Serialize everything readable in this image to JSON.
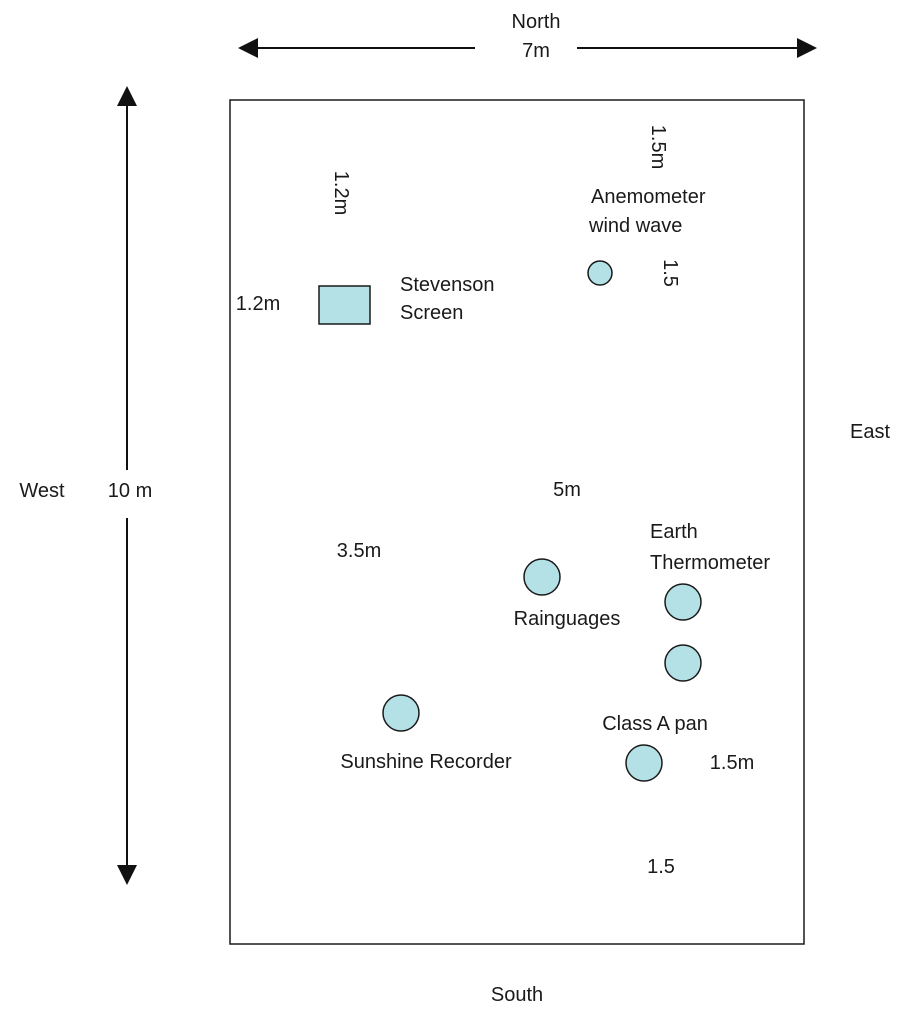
{
  "directions": {
    "north": "North",
    "south": "South",
    "east": "East",
    "west": "West"
  },
  "dimensions": {
    "width": "7m",
    "length": "10 m"
  },
  "instruments": {
    "stevenson_screen": {
      "line1": "Stevenson",
      "line2": "Screen"
    },
    "anemometer": {
      "line1": "Anemometer",
      "line2": "wind wave"
    },
    "earth_thermometer": {
      "line1": "Earth",
      "line2": "Thermometer"
    },
    "rainguages": "Rainguages",
    "sunshine_recorder": "Sunshine Recorder",
    "class_a_pan": "Class A pan"
  },
  "distances": {
    "screen_top": "1.2m",
    "screen_left": "1.2m",
    "anemometer_top": "1.5m",
    "anemometer_right": "1.5",
    "center": "5m",
    "left_mid": "3.5m",
    "pan_right": "1.5m",
    "pan_bottom": "1.5"
  },
  "colors": {
    "instrument_fill": "#b4e1e6",
    "outline": "#1a1a1a"
  }
}
